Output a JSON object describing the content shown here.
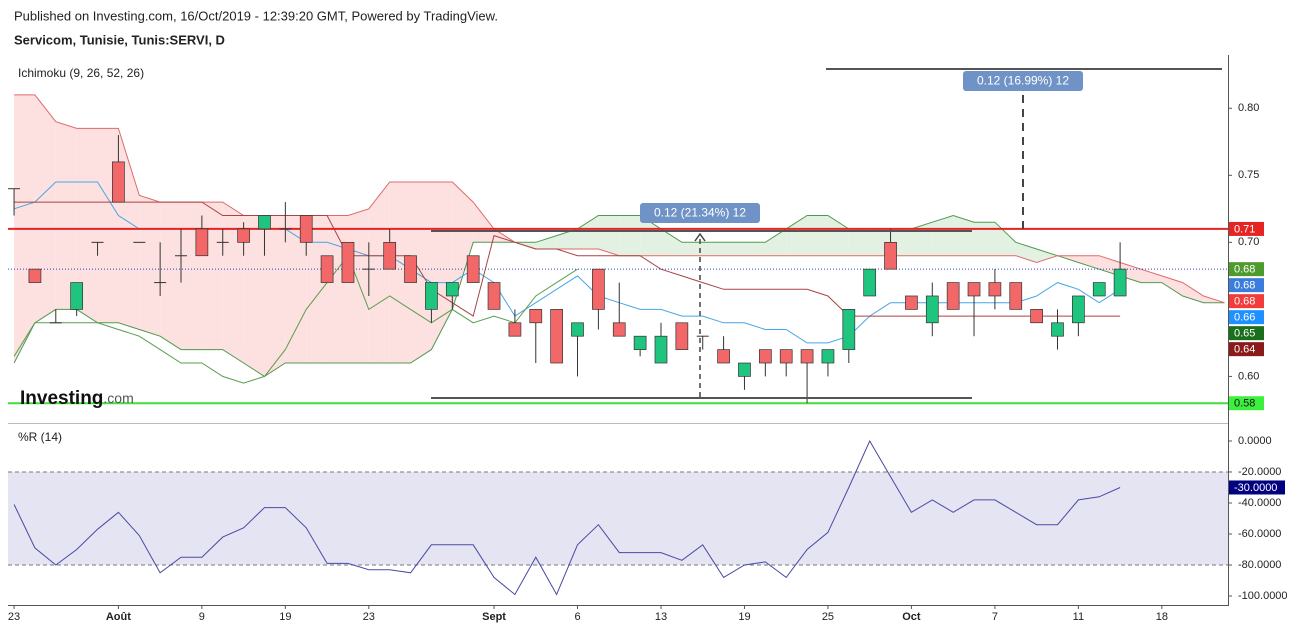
{
  "header": {
    "published": "Published on Investing.com, 16/Oct/2019 - 12:39:20 GMT, Powered by TradingView.",
    "symbol": "Servicom, Tunisie, Tunis:SERVI, D"
  },
  "logo": {
    "name": "Investing",
    "suffix": ".com"
  },
  "annotations": [
    "0.12 (21.34%) 12",
    "0.12 (16.99%) 12"
  ],
  "chart_data": [
    {
      "type": "candlestick",
      "title": "Ichimoku (9, 26, 52, 26)",
      "xlim": [
        -0.29,
        58.17
      ],
      "ylim": [
        0.566,
        0.836
      ],
      "yticks": [
        {
          "value": 0.8,
          "label": "0.80"
        },
        0.75,
        {
          "value": 0.7,
          "label": "0.70"
        },
        {
          "value": 0.6,
          "label": "0.60"
        }
      ],
      "up_color": "#1fc57f",
      "down_color": "#f26767",
      "open": [
        0.74,
        0.68,
        0.64,
        0.65,
        0.7,
        0.76,
        0.7,
        0.67,
        0.69,
        0.71,
        0.7,
        0.71,
        0.71,
        0.71,
        0.72,
        0.69,
        0.7,
        0.68,
        0.7,
        0.69,
        0.65,
        0.66,
        0.69,
        0.67,
        0.64,
        0.65,
        0.65,
        0.63,
        0.68,
        0.64,
        0.62,
        0.61,
        0.64,
        0.63,
        0.62,
        0.6,
        0.62,
        0.62,
        0.62,
        0.61,
        0.62,
        0.66,
        0.7,
        0.66,
        0.64,
        0.67,
        0.67,
        0.67,
        0.67,
        0.65,
        0.63,
        0.64,
        0.66,
        0.66
      ],
      "high": [
        0.74,
        0.68,
        0.65,
        0.67,
        0.7,
        0.78,
        0.7,
        0.7,
        0.71,
        0.72,
        0.71,
        0.715,
        0.72,
        0.73,
        0.72,
        0.69,
        0.7,
        0.7,
        0.71,
        0.69,
        0.67,
        0.67,
        0.69,
        0.67,
        0.65,
        0.65,
        0.65,
        0.64,
        0.68,
        0.67,
        0.63,
        0.64,
        0.64,
        0.63,
        0.63,
        0.61,
        0.62,
        0.62,
        0.62,
        0.62,
        0.65,
        0.68,
        0.71,
        0.66,
        0.67,
        0.67,
        0.67,
        0.68,
        0.67,
        0.65,
        0.65,
        0.66,
        0.67,
        0.7
      ],
      "low": [
        0.72,
        0.67,
        0.64,
        0.645,
        0.69,
        0.73,
        0.7,
        0.66,
        0.67,
        0.69,
        0.69,
        0.69,
        0.69,
        0.7,
        0.69,
        0.67,
        0.67,
        0.66,
        0.68,
        0.67,
        0.64,
        0.65,
        0.67,
        0.65,
        0.63,
        0.61,
        0.61,
        0.6,
        0.635,
        0.63,
        0.615,
        0.61,
        0.62,
        0.62,
        0.61,
        0.59,
        0.6,
        0.6,
        0.58,
        0.6,
        0.61,
        0.66,
        0.68,
        0.65,
        0.63,
        0.65,
        0.63,
        0.65,
        0.65,
        0.64,
        0.62,
        0.63,
        0.66,
        0.66
      ],
      "close": [
        0.74,
        0.67,
        0.64,
        0.67,
        0.7,
        0.73,
        0.7,
        0.67,
        0.69,
        0.69,
        0.7,
        0.7,
        0.72,
        0.71,
        0.7,
        0.67,
        0.67,
        0.68,
        0.68,
        0.67,
        0.67,
        0.67,
        0.67,
        0.65,
        0.63,
        0.64,
        0.61,
        0.64,
        0.65,
        0.63,
        0.63,
        0.63,
        0.62,
        0.63,
        0.61,
        0.61,
        0.61,
        0.61,
        0.61,
        0.62,
        0.65,
        0.68,
        0.68,
        0.65,
        0.66,
        0.65,
        0.66,
        0.66,
        0.65,
        0.64,
        0.64,
        0.66,
        0.67,
        0.68
      ],
      "series": [
        {
          "name": "Lead 1",
          "color": "#4f9a4f",
          "fill": "#e2f1e2",
          "values": [
            0.61,
            0.64,
            0.65,
            0.65,
            0.64,
            0.64,
            0.635,
            0.63,
            0.62,
            0.62,
            0.62,
            0.61,
            0.6,
            0.61,
            0.61,
            0.61,
            0.61,
            0.61,
            0.61,
            0.61,
            0.62,
            0.65,
            0.7,
            0.7,
            0.7,
            0.7,
            0.705,
            0.71,
            0.72,
            0.72,
            0.72,
            0.71,
            0.7,
            0.7,
            0.7,
            0.7,
            0.7,
            0.71,
            0.72,
            0.72,
            0.71,
            0.71,
            0.71,
            0.71,
            0.715,
            0.72,
            0.715,
            0.715,
            0.7,
            0.695,
            0.69,
            0.685,
            0.68,
            0.675,
            0.67,
            0.67,
            0.66,
            0.655,
            0.655
          ]
        },
        {
          "name": "Lead 2",
          "color": "#e06a6a",
          "fill": "#fde0e0",
          "values": [
            0.81,
            0.81,
            0.79,
            0.785,
            0.785,
            0.785,
            0.735,
            0.73,
            0.73,
            0.73,
            0.73,
            0.72,
            0.72,
            0.72,
            0.72,
            0.72,
            0.72,
            0.725,
            0.745,
            0.745,
            0.745,
            0.745,
            0.73,
            0.71,
            0.7,
            0.695,
            0.695,
            0.695,
            0.695,
            0.69,
            0.69,
            0.69,
            0.69,
            0.69,
            0.69,
            0.69,
            0.69,
            0.69,
            0.69,
            0.69,
            0.69,
            0.69,
            0.69,
            0.69,
            0.69,
            0.69,
            0.69,
            0.69,
            0.69,
            0.685,
            0.69,
            0.69,
            0.69,
            0.685,
            0.68,
            0.675,
            0.67,
            0.66,
            0.655
          ]
        },
        {
          "name": "Conversion Line",
          "color": "#46a6e6",
          "values": [
            0.725,
            0.73,
            0.745,
            0.745,
            0.745,
            0.72,
            0.71,
            0.71,
            0.71,
            0.71,
            0.71,
            0.71,
            0.71,
            0.71,
            0.7,
            0.7,
            0.695,
            0.69,
            0.69,
            0.68,
            0.67,
            0.67,
            0.68,
            0.67,
            0.645,
            0.655,
            0.665,
            0.675,
            0.66,
            0.655,
            0.65,
            0.65,
            0.645,
            0.645,
            0.64,
            0.64,
            0.635,
            0.635,
            0.625,
            0.625,
            0.63,
            0.645,
            0.655,
            0.655,
            0.655,
            0.655,
            0.655,
            0.655,
            0.655,
            0.66,
            0.67,
            0.665,
            0.655,
            0.665
          ]
        },
        {
          "name": "Base Line",
          "color": "#a94442",
          "values": [
            0.73,
            0.73,
            0.73,
            0.73,
            0.73,
            0.73,
            0.73,
            0.73,
            0.73,
            0.73,
            0.72,
            0.72,
            0.72,
            0.72,
            0.72,
            0.72,
            0.69,
            0.69,
            0.69,
            0.69,
            0.665,
            0.655,
            0.645,
            0.705,
            0.7,
            0.695,
            0.695,
            0.69,
            0.69,
            0.69,
            0.69,
            0.68,
            0.675,
            0.67,
            0.665,
            0.665,
            0.665,
            0.665,
            0.665,
            0.66,
            0.645,
            0.645,
            0.645,
            0.645,
            0.645,
            0.645,
            0.645,
            0.645,
            0.645,
            0.645,
            0.645,
            0.645,
            0.645,
            0.645
          ]
        },
        {
          "name": "Lagging Span",
          "color": "#5a9e4b",
          "values": [
            0.615,
            0.64,
            0.64,
            0.64,
            0.64,
            0.635,
            0.63,
            0.62,
            0.61,
            0.61,
            0.6,
            0.595,
            0.6,
            0.62,
            0.65,
            0.67,
            0.69,
            0.65,
            0.66,
            0.65,
            0.64,
            0.65,
            0.64,
            0.645,
            0.64,
            0.66,
            0.67,
            0.68
          ]
        }
      ],
      "levels": [
        {
          "value": 0.71,
          "color": "#e52424"
        },
        {
          "value": 0.58,
          "color": "#3de03d"
        },
        {
          "value": 0.68,
          "color": "#3040c0",
          "dotted": true
        }
      ],
      "price_labels": [
        {
          "value": 0.71,
          "color": "#e52424",
          "text_color": "#fff"
        },
        {
          "value": 0.68,
          "color": "#4f9a2e",
          "text_color": "#fff"
        },
        {
          "value": 0.68,
          "color": "#3b7ddd",
          "text_color": "#fff"
        },
        {
          "value": 0.68,
          "color": "#f23b3b",
          "text_color": "#fff"
        },
        {
          "value": 0.66,
          "color": "#1e90ff",
          "text_color": "#fff"
        },
        {
          "value": 0.65,
          "color": "#1b6e1b",
          "text_color": "#fff"
        },
        {
          "value": 0.64,
          "color": "#8b1a1a",
          "text_color": "#fff"
        },
        {
          "value": 0.58,
          "color": "#3ef03e",
          "text_color": "#111"
        }
      ]
    },
    {
      "type": "line",
      "title": "%R (14)",
      "xlim": [
        -0.29,
        58.17
      ],
      "ylim": [
        -105.8,
        10.3
      ],
      "yticks": [
        {
          "value": 0,
          "label": "0.0000"
        },
        {
          "value": -20,
          "label": "-20.0000"
        },
        {
          "value": -40,
          "label": "-40.0000"
        },
        {
          "value": -60,
          "label": "-60.0000"
        },
        {
          "value": -80,
          "label": "-80.0000"
        },
        {
          "value": -100,
          "label": "-100.0000"
        }
      ],
      "band": [
        -20,
        -80
      ],
      "band_color": "#e4e4f2",
      "xticks": [
        {
          "value": 0,
          "label": "23"
        },
        {
          "value": 5,
          "label": "Août",
          "bold": true
        },
        {
          "value": 9,
          "label": "9"
        },
        {
          "value": 13,
          "label": "19"
        },
        {
          "value": 17,
          "label": "23"
        },
        {
          "value": 23,
          "label": "Sept",
          "bold": true
        },
        {
          "value": 27,
          "label": "6"
        },
        {
          "value": 31,
          "label": "13"
        },
        {
          "value": 35,
          "label": "19"
        },
        {
          "value": 39,
          "label": "25"
        },
        {
          "value": 43,
          "label": "Oct",
          "bold": true
        },
        {
          "value": 47,
          "label": "7"
        },
        {
          "value": 51,
          "label": "11"
        },
        {
          "value": 55,
          "label": "18"
        }
      ],
      "color": "#4a4aa6",
      "values": [
        -41,
        -69,
        -80,
        -70,
        -57,
        -46,
        -61,
        -85,
        -75,
        -75,
        -62,
        -56,
        -43,
        -43,
        -56,
        -79,
        -79,
        -83,
        -83,
        -85,
        -67,
        -67,
        -67,
        -88,
        -99,
        -75,
        -99,
        -67,
        -54,
        -72,
        -72,
        -72,
        -77,
        -67,
        -88,
        -80,
        -78,
        -88,
        -70,
        -59,
        -30,
        0,
        -23,
        -46,
        -38,
        -46,
        -38,
        -38,
        -46,
        -54,
        -54,
        -38,
        -36,
        -30
      ],
      "last_label": {
        "value": -30,
        "label": "-30.0000",
        "color": "#000080"
      }
    }
  ]
}
